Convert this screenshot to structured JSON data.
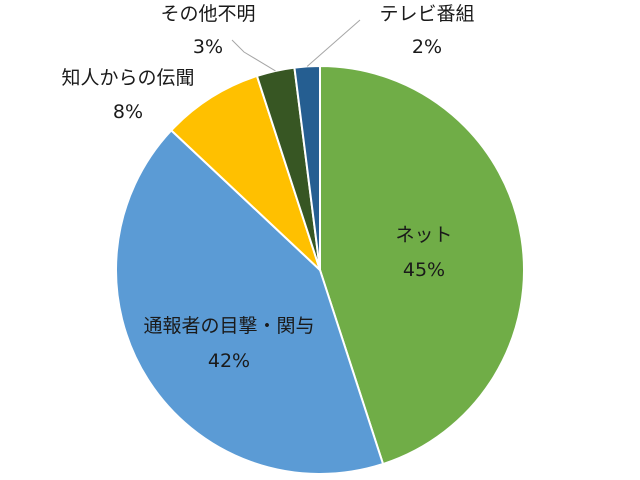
{
  "chart_data": {
    "type": "pie",
    "title": "",
    "legend": "none",
    "labels": [
      "ネット",
      "通報者の目撃・関与",
      "知人からの伝聞",
      "その他不明",
      "テレビ番組"
    ],
    "values": [
      45,
      42,
      8,
      3,
      2
    ],
    "value_labels": [
      "45%",
      "42%",
      "8%",
      "3%",
      "2%"
    ],
    "colors": [
      "#70ad47",
      "#5b9bd5",
      "#ffc000",
      "#375623",
      "#255e91"
    ]
  }
}
